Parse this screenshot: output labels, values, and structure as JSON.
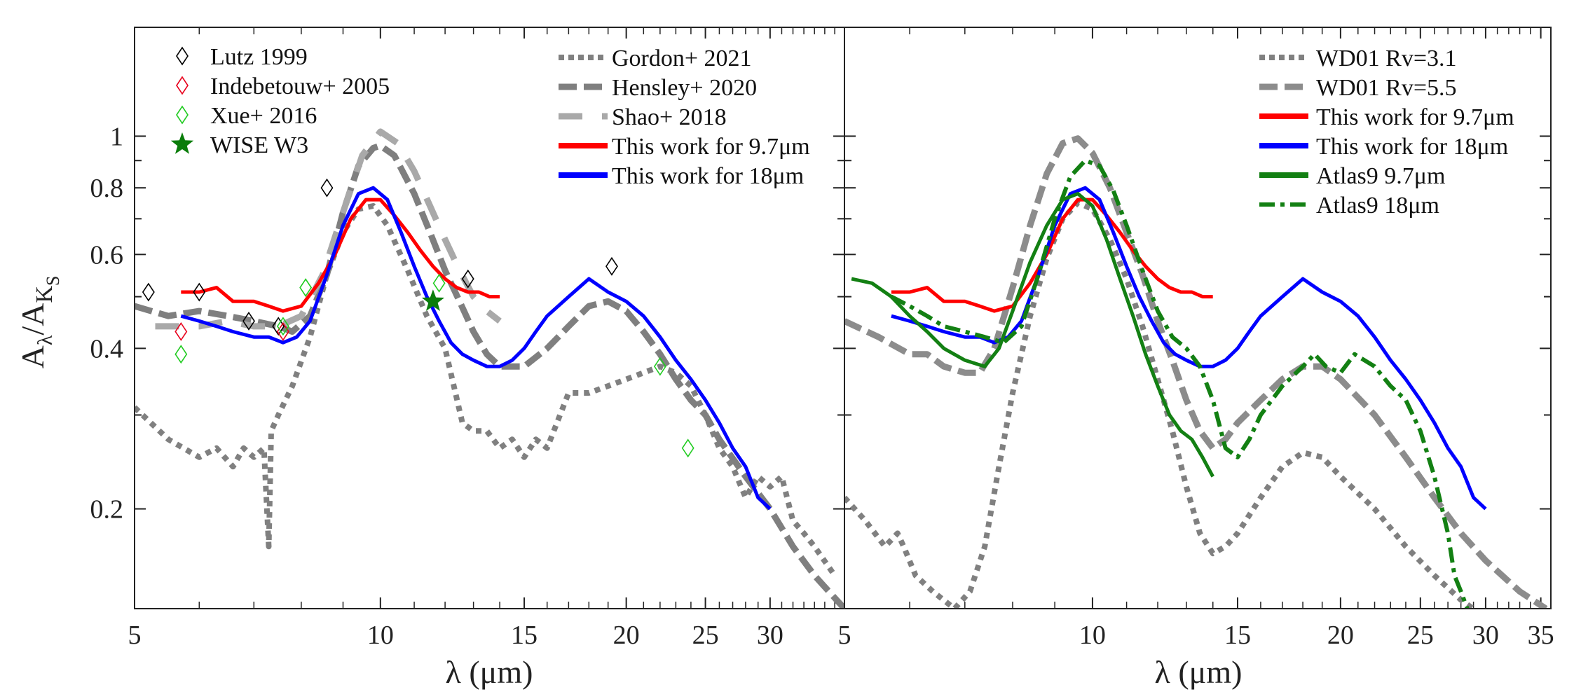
{
  "chart_data": [
    {
      "type": "line",
      "panel": "left",
      "xscale": "log",
      "yscale": "log",
      "xlim": [
        5,
        37
      ],
      "ylim": [
        0.13,
        1.6
      ],
      "xlabel": "λ (μm)",
      "ylabel": "A_λ/A_Ks",
      "xticks": [
        5,
        10,
        15,
        20,
        25,
        30
      ],
      "yticks": [
        0.2,
        0.4,
        0.6,
        0.8,
        1
      ],
      "ytick_labels": [
        "0.2",
        "0.4",
        "0.6",
        "0.8",
        "1"
      ],
      "legend_placement": "top-left and top-center",
      "series": [
        {
          "name": "Gordon+ 2021",
          "color": "#808080",
          "style": "dotted",
          "x": [
            5,
            5.5,
            6,
            6.3,
            6.6,
            6.8,
            7.0,
            7.2,
            7.3,
            7.35,
            7.5,
            7.8,
            8.2,
            8.6,
            9.0,
            9.4,
            9.8,
            10.2,
            10.8,
            11.4,
            12.0,
            12.3,
            12.6,
            13.0,
            13.5,
            14.0,
            14.5,
            15.0,
            15.5,
            16.0,
            17.0,
            18.0,
            19.0,
            20.0,
            21.0,
            22.0,
            23.0,
            24.0,
            25.0,
            26.0,
            27.0,
            28.0,
            29.0,
            30.0,
            31.0,
            32.0,
            33.0,
            34.0,
            36.0
          ],
          "y": [
            0.31,
            0.27,
            0.25,
            0.26,
            0.24,
            0.26,
            0.25,
            0.26,
            0.17,
            0.28,
            0.3,
            0.34,
            0.42,
            0.55,
            0.66,
            0.73,
            0.74,
            0.68,
            0.56,
            0.46,
            0.4,
            0.34,
            0.29,
            0.28,
            0.28,
            0.26,
            0.27,
            0.25,
            0.27,
            0.26,
            0.33,
            0.33,
            0.34,
            0.35,
            0.36,
            0.37,
            0.36,
            0.34,
            0.3,
            0.26,
            0.24,
            0.21,
            0.23,
            0.22,
            0.23,
            0.19,
            0.18,
            0.17,
            0.15
          ]
        },
        {
          "name": "Hensley+ 2020",
          "color": "#7f7f7f",
          "style": "dashed",
          "x": [
            5,
            5.5,
            6,
            6.5,
            7,
            7.5,
            7.8,
            8.2,
            8.6,
            9.0,
            9.4,
            9.8,
            10.0,
            10.4,
            11.0,
            11.5,
            12.0,
            12.5,
            13.0,
            13.5,
            14.0,
            15.0,
            16.0,
            17.0,
            18.0,
            19.0,
            20.0,
            21.0,
            22.0,
            23.0,
            24.0,
            25.0,
            26.0,
            28.0,
            30.0,
            32.0,
            34.0,
            37.0
          ],
          "y": [
            0.48,
            0.46,
            0.47,
            0.46,
            0.45,
            0.44,
            0.43,
            0.46,
            0.55,
            0.72,
            0.88,
            0.95,
            0.96,
            0.92,
            0.78,
            0.66,
            0.56,
            0.49,
            0.43,
            0.39,
            0.37,
            0.37,
            0.4,
            0.44,
            0.48,
            0.49,
            0.47,
            0.43,
            0.39,
            0.35,
            0.32,
            0.3,
            0.27,
            0.23,
            0.2,
            0.17,
            0.15,
            0.13
          ]
        },
        {
          "name": "Shao+ 2018",
          "color": "#a9a9a9",
          "style": "long-dash",
          "x": [
            5.3,
            6,
            6.5,
            7,
            7.5,
            8,
            8.5,
            9.0,
            9.5,
            10.0,
            10.5,
            11.0,
            11.5,
            12.0,
            12.5,
            13.0,
            13.5,
            14.0
          ],
          "y": [
            0.44,
            0.44,
            0.45,
            0.44,
            0.44,
            0.46,
            0.55,
            0.72,
            0.92,
            1.02,
            0.97,
            0.86,
            0.74,
            0.64,
            0.56,
            0.5,
            0.47,
            0.45
          ]
        },
        {
          "name": "This work for 9.7μm",
          "color": "#ff0000",
          "style": "solid",
          "x": [
            5.7,
            6.0,
            6.3,
            6.6,
            7.0,
            7.3,
            7.6,
            8.0,
            8.4,
            8.8,
            9.2,
            9.6,
            10.0,
            10.4,
            10.8,
            11.2,
            11.6,
            12.0,
            12.4,
            12.8,
            13.2,
            13.6,
            14.0
          ],
          "y": [
            0.51,
            0.51,
            0.52,
            0.49,
            0.49,
            0.48,
            0.47,
            0.48,
            0.53,
            0.6,
            0.7,
            0.76,
            0.76,
            0.71,
            0.66,
            0.61,
            0.57,
            0.54,
            0.52,
            0.51,
            0.51,
            0.5,
            0.5
          ]
        },
        {
          "name": "This work for 18μm",
          "color": "#0000ff",
          "style": "solid",
          "x": [
            5.7,
            6.0,
            6.3,
            6.6,
            7.0,
            7.3,
            7.6,
            7.9,
            8.2,
            8.6,
            9.0,
            9.4,
            9.8,
            10.2,
            10.6,
            11.0,
            11.4,
            11.8,
            12.2,
            12.6,
            13.0,
            13.5,
            14.0,
            14.5,
            15.0,
            15.5,
            16.0,
            17.0,
            18.0,
            19.0,
            20.0,
            21.0,
            22.0,
            23.0,
            24.0,
            25.0,
            26.0,
            27.0,
            28.0,
            29.0,
            30.0
          ],
          "y": [
            0.46,
            0.45,
            0.44,
            0.43,
            0.42,
            0.42,
            0.41,
            0.42,
            0.45,
            0.55,
            0.68,
            0.78,
            0.8,
            0.76,
            0.66,
            0.57,
            0.5,
            0.45,
            0.41,
            0.39,
            0.38,
            0.37,
            0.37,
            0.38,
            0.4,
            0.43,
            0.46,
            0.5,
            0.54,
            0.51,
            0.49,
            0.46,
            0.42,
            0.38,
            0.35,
            0.32,
            0.29,
            0.26,
            0.24,
            0.21,
            0.2
          ]
        }
      ],
      "points": [
        {
          "name": "Lutz 1999",
          "color": "#000000",
          "marker": "diamond-open",
          "x": [
            5.2,
            6.0,
            6.9,
            7.5,
            8.6,
            12.8,
            19.2
          ],
          "y": [
            0.51,
            0.51,
            0.45,
            0.44,
            0.8,
            0.54,
            0.57
          ]
        },
        {
          "name": "Indebetouw+ 2005",
          "color": "#e8001c",
          "marker": "diamond-open",
          "x": [
            5.7,
            7.6
          ],
          "y": [
            0.43,
            0.43
          ]
        },
        {
          "name": "Xue+ 2016",
          "color": "#22cc22",
          "marker": "diamond-open",
          "x": [
            5.7,
            7.6,
            8.1,
            11.8,
            22.0,
            23.8
          ],
          "y": [
            0.39,
            0.44,
            0.52,
            0.53,
            0.37,
            0.26
          ]
        },
        {
          "name": "WISE W3",
          "color": "#0a7d0a",
          "marker": "star",
          "x": [
            11.6
          ],
          "y": [
            0.49
          ]
        }
      ]
    },
    {
      "type": "line",
      "panel": "right",
      "xscale": "log",
      "yscale": "log",
      "xlim": [
        5,
        36
      ],
      "ylim": [
        0.13,
        1.6
      ],
      "xlabel": "λ (μm)",
      "xticks": [
        5,
        10,
        15,
        20,
        25,
        30,
        35
      ],
      "legend_placement": "top-right",
      "series": [
        {
          "name": "WD01 Rv=3.1",
          "color": "#808080",
          "style": "dotted",
          "x": [
            5,
            5.3,
            5.6,
            5.8,
            5.9,
            6.1,
            6.4,
            6.8,
            7.1,
            7.4,
            7.7,
            8.0,
            8.4,
            8.8,
            9.2,
            9.6,
            10.0,
            10.5,
            11.0,
            11.5,
            12.0,
            12.5,
            13.0,
            13.5,
            14.0,
            14.5,
            15.0,
            16.0,
            17.0,
            18.0,
            19.0,
            20.0,
            22.0,
            24.0,
            26.0,
            28.0,
            30.0,
            33.0
          ],
          "y": [
            0.21,
            0.19,
            0.17,
            0.18,
            0.17,
            0.15,
            0.14,
            0.13,
            0.14,
            0.17,
            0.24,
            0.33,
            0.46,
            0.59,
            0.7,
            0.75,
            0.73,
            0.64,
            0.54,
            0.44,
            0.35,
            0.28,
            0.22,
            0.18,
            0.165,
            0.17,
            0.18,
            0.21,
            0.24,
            0.255,
            0.25,
            0.23,
            0.2,
            0.17,
            0.15,
            0.135,
            0.125,
            0.11
          ]
        },
        {
          "name": "WD01 Rv=5.5",
          "color": "#8c8c8c",
          "style": "dashed",
          "x": [
            5,
            5.5,
            6.0,
            6.3,
            6.6,
            7.0,
            7.3,
            7.6,
            8.0,
            8.4,
            8.8,
            9.2,
            9.6,
            10.0,
            10.5,
            11.0,
            11.5,
            12.0,
            12.5,
            13.0,
            13.5,
            14.0,
            14.5,
            15.0,
            16.0,
            17.0,
            18.0,
            19.0,
            20.0,
            22.0,
            24.0,
            26.0,
            28.0,
            30.0,
            33.0,
            35.5
          ],
          "y": [
            0.45,
            0.42,
            0.39,
            0.39,
            0.37,
            0.36,
            0.36,
            0.4,
            0.52,
            0.68,
            0.85,
            0.97,
            0.99,
            0.93,
            0.8,
            0.66,
            0.55,
            0.45,
            0.38,
            0.32,
            0.28,
            0.26,
            0.27,
            0.29,
            0.32,
            0.35,
            0.37,
            0.37,
            0.35,
            0.3,
            0.25,
            0.21,
            0.18,
            0.16,
            0.14,
            0.13
          ]
        },
        {
          "name": "This work for 9.7μm",
          "color": "#ff0000",
          "style": "solid",
          "x": [
            5.7,
            6.0,
            6.3,
            6.6,
            7.0,
            7.3,
            7.6,
            8.0,
            8.4,
            8.8,
            9.2,
            9.6,
            10.0,
            10.4,
            10.8,
            11.2,
            11.6,
            12.0,
            12.4,
            12.8,
            13.2,
            13.6,
            14.0
          ],
          "y": [
            0.51,
            0.51,
            0.52,
            0.49,
            0.49,
            0.48,
            0.47,
            0.48,
            0.53,
            0.6,
            0.7,
            0.76,
            0.76,
            0.71,
            0.66,
            0.61,
            0.57,
            0.54,
            0.52,
            0.51,
            0.51,
            0.5,
            0.5
          ]
        },
        {
          "name": "This work for 18μm",
          "color": "#0000ff",
          "style": "solid",
          "x": [
            5.7,
            6.0,
            6.3,
            6.6,
            7.0,
            7.3,
            7.6,
            7.9,
            8.2,
            8.6,
            9.0,
            9.4,
            9.8,
            10.2,
            10.6,
            11.0,
            11.4,
            11.8,
            12.2,
            12.6,
            13.0,
            13.5,
            14.0,
            14.5,
            15.0,
            15.5,
            16.0,
            17.0,
            18.0,
            19.0,
            20.0,
            21.0,
            22.0,
            23.0,
            24.0,
            25.0,
            26.0,
            27.0,
            28.0,
            29.0,
            30.0
          ],
          "y": [
            0.46,
            0.45,
            0.44,
            0.43,
            0.42,
            0.42,
            0.41,
            0.42,
            0.45,
            0.55,
            0.68,
            0.78,
            0.8,
            0.76,
            0.66,
            0.57,
            0.5,
            0.45,
            0.41,
            0.39,
            0.38,
            0.37,
            0.37,
            0.38,
            0.4,
            0.43,
            0.46,
            0.5,
            0.54,
            0.51,
            0.49,
            0.46,
            0.42,
            0.38,
            0.35,
            0.32,
            0.29,
            0.26,
            0.24,
            0.21,
            0.2
          ]
        },
        {
          "name": "Atlas9 9.7μm",
          "color": "#138013",
          "style": "solid",
          "x": [
            5.1,
            5.4,
            5.7,
            6.0,
            6.3,
            6.6,
            7.0,
            7.4,
            7.7,
            8.0,
            8.4,
            8.8,
            9.2,
            9.6,
            10.0,
            10.4,
            10.8,
            11.2,
            11.6,
            12.0,
            12.4,
            12.8,
            13.2,
            13.6,
            14.0
          ],
          "y": [
            0.54,
            0.53,
            0.5,
            0.46,
            0.43,
            0.4,
            0.38,
            0.37,
            0.4,
            0.47,
            0.58,
            0.68,
            0.76,
            0.78,
            0.74,
            0.64,
            0.54,
            0.46,
            0.39,
            0.34,
            0.3,
            0.28,
            0.27,
            0.25,
            0.23
          ]
        },
        {
          "name": "Atlas9 18μm",
          "color": "#138013",
          "style": "dash-dot",
          "x": [
            5.7,
            6.0,
            6.3,
            6.6,
            7.0,
            7.4,
            7.8,
            8.2,
            8.6,
            9.0,
            9.4,
            9.8,
            10.2,
            10.6,
            11.0,
            11.5,
            12.0,
            12.5,
            13.0,
            13.5,
            14.0,
            14.5,
            15.0,
            15.5,
            16.0,
            17.0,
            18.0,
            18.6,
            19.2,
            20.0,
            20.8,
            22.0,
            23.0,
            24.0,
            25.0,
            26.0,
            27.0,
            27.5,
            28.0,
            28.5
          ],
          "y": [
            0.5,
            0.48,
            0.46,
            0.44,
            0.43,
            0.42,
            0.41,
            0.44,
            0.55,
            0.7,
            0.84,
            0.9,
            0.88,
            0.79,
            0.68,
            0.56,
            0.47,
            0.42,
            0.4,
            0.37,
            0.32,
            0.26,
            0.25,
            0.27,
            0.3,
            0.34,
            0.37,
            0.39,
            0.37,
            0.36,
            0.39,
            0.37,
            0.34,
            0.32,
            0.28,
            0.23,
            0.18,
            0.15,
            0.14,
            0.13
          ]
        }
      ]
    }
  ],
  "legend_left_markers": [
    {
      "label": "Lutz 1999",
      "icon": "diamond-open",
      "color": "#000000"
    },
    {
      "label": "Indebetouw+ 2005",
      "icon": "diamond-open",
      "color": "#e8001c"
    },
    {
      "label": "Xue+ 2016",
      "icon": "diamond-open",
      "color": "#22cc22"
    },
    {
      "label": "WISE W3",
      "icon": "star",
      "color": "#0a7d0a"
    }
  ],
  "legend_left_lines": [
    {
      "label": "Gordon+ 2021",
      "color": "#808080",
      "style": "dotted"
    },
    {
      "label": "Hensley+ 2020",
      "color": "#7f7f7f",
      "style": "dashed"
    },
    {
      "label": "Shao+ 2018",
      "color": "#a9a9a9",
      "style": "long-dash"
    },
    {
      "label": "This work for 9.7μm",
      "color": "#ff0000",
      "style": "solid"
    },
    {
      "label": "This work for 18μm",
      "color": "#0000ff",
      "style": "solid"
    }
  ],
  "legend_right": [
    {
      "label": "WD01 Rv=3.1",
      "color": "#808080",
      "style": "dotted"
    },
    {
      "label": "WD01 Rv=5.5",
      "color": "#8c8c8c",
      "style": "dashed"
    },
    {
      "label": "This work for 9.7μm",
      "color": "#ff0000",
      "style": "solid"
    },
    {
      "label": "This work for 18μm",
      "color": "#0000ff",
      "style": "solid"
    },
    {
      "label": "Atlas9 9.7μm",
      "color": "#138013",
      "style": "solid"
    },
    {
      "label": "Atlas9 18μm",
      "color": "#138013",
      "style": "dash-dot"
    }
  ],
  "labels": {
    "xlabel_left": "λ (μm)",
    "xlabel_right": "λ (μm)",
    "ylabel_main": "A",
    "ylabel_sub1": "λ",
    "ylabel_mid": "/A",
    "ylabel_sub2": "K",
    "ylabel_sub3": "S"
  }
}
